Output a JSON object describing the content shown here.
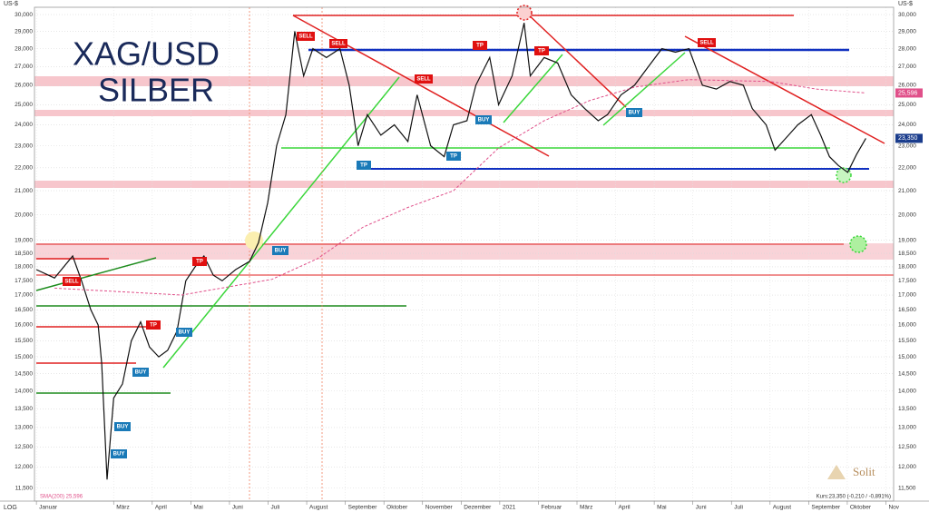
{
  "chart_data": {
    "type": "line",
    "title": "XAG/USD",
    "subtitle": "SILBER",
    "y_unit": "US-$",
    "scale_label": "LOG",
    "log_y": true,
    "grid": true,
    "ylim": [
      11200,
      30450
    ],
    "yticks": [
      {
        "value": 30000,
        "label": "30,000"
      },
      {
        "value": 29000,
        "label": "29,000"
      },
      {
        "value": 28000,
        "label": "28,000"
      },
      {
        "value": 27000,
        "label": "27,000"
      },
      {
        "value": 26000,
        "label": "26,000"
      },
      {
        "value": 25000,
        "label": "25,000"
      },
      {
        "value": 24000,
        "label": "24,000"
      },
      {
        "value": 23000,
        "label": "23,000"
      },
      {
        "value": 22000,
        "label": "22,000"
      },
      {
        "value": 21000,
        "label": "21,000"
      },
      {
        "value": 20000,
        "label": "20,000"
      },
      {
        "value": 19000,
        "label": "19,000"
      },
      {
        "value": 18500,
        "label": "18,500"
      },
      {
        "value": 18000,
        "label": "18,000"
      },
      {
        "value": 17500,
        "label": "17,500"
      },
      {
        "value": 17000,
        "label": "17,000"
      },
      {
        "value": 16500,
        "label": "16,500"
      },
      {
        "value": 16000,
        "label": "16,000"
      },
      {
        "value": 15500,
        "label": "15,500"
      },
      {
        "value": 15000,
        "label": "15,000"
      },
      {
        "value": 14500,
        "label": "14,500"
      },
      {
        "value": 14000,
        "label": "14,000"
      },
      {
        "value": 13500,
        "label": "13,500"
      },
      {
        "value": 13000,
        "label": "13,000"
      },
      {
        "value": 12500,
        "label": "12,500"
      },
      {
        "value": 12000,
        "label": "12,000"
      },
      {
        "value": 11500,
        "label": "11,500"
      }
    ],
    "xlim": [
      -0.05,
      22.2
    ],
    "xticks": [
      {
        "value": 0,
        "label": "Januar"
      },
      {
        "value": 2,
        "label": "März"
      },
      {
        "value": 3,
        "label": "April"
      },
      {
        "value": 4,
        "label": "Mai"
      },
      {
        "value": 5,
        "label": "Juni"
      },
      {
        "value": 6,
        "label": "Juli"
      },
      {
        "value": 7,
        "label": "August"
      },
      {
        "value": 8,
        "label": "September"
      },
      {
        "value": 9,
        "label": "Oktober"
      },
      {
        "value": 10,
        "label": "November"
      },
      {
        "value": 11,
        "label": "Dezember"
      },
      {
        "value": 12,
        "label": "2021"
      },
      {
        "value": 13,
        "label": "Februar"
      },
      {
        "value": 14,
        "label": "März"
      },
      {
        "value": 15,
        "label": "April"
      },
      {
        "value": 16,
        "label": "Mai"
      },
      {
        "value": 17,
        "label": "Juni"
      },
      {
        "value": 18,
        "label": "Juli"
      },
      {
        "value": 19,
        "label": "August"
      },
      {
        "value": 20,
        "label": "September"
      },
      {
        "value": 21,
        "label": "Oktober"
      },
      {
        "value": 22,
        "label": "Nov"
      }
    ],
    "series": [
      {
        "name": "Kurs:23,350 (-0,210 / -0,891%)",
        "color": "#111111",
        "x": [
          0,
          0.47,
          0.94,
          1.17,
          1.41,
          1.6,
          1.69,
          1.83,
          2.0,
          2.23,
          2.46,
          2.7,
          2.93,
          3.17,
          3.4,
          3.64,
          3.87,
          4.11,
          4.34,
          4.58,
          4.81,
          5.16,
          5.52,
          5.75,
          5.99,
          6.22,
          6.46,
          6.69,
          6.92,
          7.16,
          7.51,
          7.86,
          8.1,
          8.33,
          8.57,
          8.92,
          9.27,
          9.62,
          9.86,
          10.21,
          10.56,
          10.8,
          11.15,
          11.38,
          11.74,
          11.97,
          12.32,
          12.63,
          12.79,
          13.15,
          13.5,
          13.85,
          14.2,
          14.55,
          14.79,
          15.14,
          15.49,
          15.85,
          16.2,
          16.55,
          16.9,
          17.25,
          17.61,
          17.96,
          18.31,
          18.54,
          18.9,
          19.13,
          19.48,
          19.72,
          20.07,
          20.31,
          20.54,
          20.77,
          21.01,
          21.24,
          21.48
        ],
        "values": [
          17900,
          17600,
          18400,
          17500,
          16500,
          16000,
          14800,
          11700,
          13800,
          14200,
          15500,
          16100,
          15300,
          15000,
          15200,
          15800,
          17500,
          18000,
          18400,
          17700,
          17500,
          17900,
          18200,
          18900,
          20500,
          23000,
          24500,
          29000,
          26500,
          28000,
          27500,
          28000,
          26000,
          23000,
          24500,
          23500,
          24000,
          23200,
          25500,
          23000,
          22500,
          24000,
          24200,
          26000,
          27500,
          25000,
          26500,
          29500,
          26500,
          27500,
          27200,
          25500,
          24800,
          24200,
          24500,
          25500,
          26000,
          27000,
          28000,
          27800,
          28000,
          26000,
          25800,
          26200,
          26000,
          24800,
          24000,
          22800,
          23500,
          24000,
          24500,
          23500,
          22500,
          22100,
          21800,
          22600,
          23350
        ]
      },
      {
        "name": "SMA(200) 25,596",
        "color": "#e0508a",
        "dashed": true,
        "x": [
          0.47,
          3.76,
          6.1,
          7.28,
          8.45,
          9.62,
          10.8,
          11.97,
          13.15,
          14.32,
          15.49,
          16.9,
          19.01,
          20.19,
          21.48
        ],
        "values": [
          17240,
          17000,
          17550,
          18300,
          19500,
          20300,
          21000,
          22900,
          24200,
          25200,
          25900,
          26300,
          26200,
          25800,
          25596
        ]
      }
    ],
    "price_tags": [
      {
        "value": 25596,
        "label": "25,596",
        "color": "#e0508a"
      },
      {
        "value": 23350,
        "label": "23,350",
        "color": "#1a3c8c"
      }
    ],
    "annotations": [
      "SELL",
      "SELL",
      "SELL",
      "TP",
      "TP",
      "SELL",
      "BUY",
      "BUY",
      "TP",
      "TP",
      "BUY",
      "TP",
      "SELL",
      "TP",
      "BUY",
      "BUY",
      "BUY",
      "BUY"
    ],
    "brand": "Solit"
  }
}
